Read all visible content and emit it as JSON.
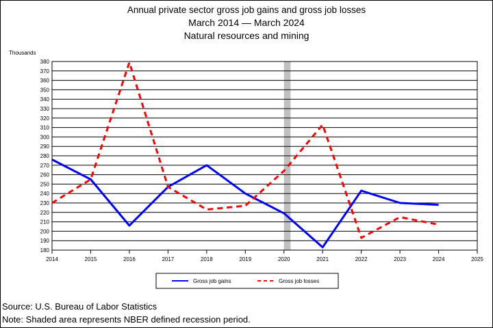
{
  "titles": {
    "line1": "Annual private sector gross job gains and gross job losses",
    "line2": "March 2014 — March 2024",
    "line3": "Natural resources and mining"
  },
  "footer": {
    "source": "Source: U.S. Bureau of Labor Statistics",
    "note": "Note: Shaded area represents NBER defined recession period."
  },
  "chart_data": {
    "type": "line",
    "ylabel": "Thousands",
    "xlim": [
      2014,
      2025
    ],
    "ylim": [
      180,
      380
    ],
    "ystep": 10,
    "x_ticks": [
      "2014",
      "2015",
      "2016",
      "2017",
      "2018",
      "2019",
      "2020",
      "2021",
      "2022",
      "2023",
      "2024",
      "2025"
    ],
    "recession": {
      "start": 2020,
      "end": 2020.17
    },
    "grid": true,
    "legend_position": "bottom",
    "series": [
      {
        "name": "Gross job gains",
        "color": "#0000ff",
        "style": "solid",
        "x": [
          2014,
          2015,
          2016,
          2017,
          2018,
          2019,
          2020,
          2021,
          2022,
          2023,
          2024
        ],
        "values": [
          276,
          255,
          206,
          247,
          270,
          240,
          219,
          183,
          243,
          230,
          228
        ]
      },
      {
        "name": "Gross job losses",
        "color": "#ff0000",
        "style": "dashed",
        "x": [
          2014,
          2015,
          2016,
          2017,
          2018,
          2019,
          2020,
          2021,
          2022,
          2023,
          2024
        ],
        "values": [
          230,
          255,
          379,
          247,
          223,
          227,
          264,
          313,
          193,
          215,
          207
        ]
      }
    ]
  }
}
